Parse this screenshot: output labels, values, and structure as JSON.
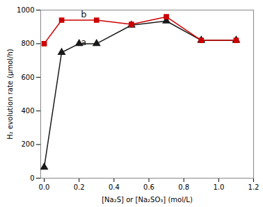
{
  "chart_data": {
    "type": "line",
    "xlabel": "[Na₂S] or [Na₂SO₃] (mol/L)",
    "ylabel": "H₂ evolution rate (μmol/h)",
    "series": [
      {
        "color": "#1a1a1a",
        "marker": "triangle",
        "x": [
          0.0,
          0.1,
          0.2,
          0.3,
          0.5,
          0.7,
          0.9,
          1.1
        ],
        "values": [
          65,
          748,
          800,
          800,
          910,
          935,
          820,
          820
        ]
      },
      {
        "color": "#cc0000",
        "marker": "square",
        "x": [
          0.0,
          0.1,
          0.3,
          0.5,
          0.7,
          0.9,
          1.1
        ],
        "values": [
          800,
          940,
          940,
          915,
          960,
          820,
          820
        ]
      }
    ],
    "annotations": [
      {
        "text": "a",
        "x": 0.21,
        "y": 790
      },
      {
        "text": "b",
        "x": 0.21,
        "y": 957
      }
    ],
    "xlim": [
      -0.02,
      1.2
    ],
    "ylim": [
      0,
      1000
    ],
    "xticks": [
      {
        "value": 0.0,
        "label": "0.0"
      },
      0.2,
      0.4,
      0.6,
      0.8,
      {
        "value": 1.0,
        "label": "1.0"
      },
      1.2
    ],
    "yticks": [
      0,
      200,
      400,
      600,
      800,
      1000
    ],
    "grid": false
  }
}
